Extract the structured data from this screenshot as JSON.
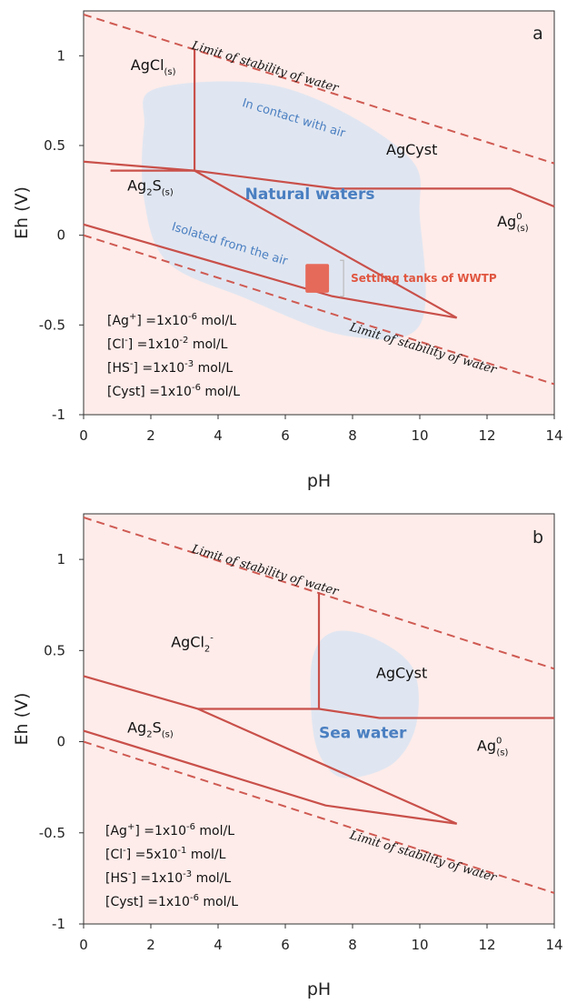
{
  "chart_data": [
    {
      "panel": "a",
      "type": "line",
      "xlabel": "pH",
      "ylabel": "Eh (V)",
      "xlim": [
        0,
        14
      ],
      "ylim": [
        -1,
        1.25
      ],
      "xticks": [
        "0",
        "2",
        "4",
        "6",
        "8",
        "10",
        "12",
        "14"
      ],
      "yticks": [
        "1",
        "0.5",
        "0",
        "-0.5",
        "-1"
      ],
      "species_labels": [
        {
          "main": "AgCl",
          "sub": "(s)",
          "x": 1.4,
          "y": 0.92
        },
        {
          "main": "AgCyst",
          "x": 9.0,
          "y": 0.45
        },
        {
          "main": "Ag",
          "sub": "(s)",
          "sup": "0",
          "x": 12.3,
          "y": 0.05
        },
        {
          "main": "Ag",
          "sub": "(s)",
          "sub2": "2",
          "tail": "S",
          "x": 1.3,
          "y": 0.25
        }
      ],
      "boundaries": [
        {
          "x": [
            3.3,
            3.3
          ],
          "y": [
            1.04,
            0.36
          ]
        },
        {
          "x": [
            0.8,
            3.3,
            7.5,
            12.7,
            14
          ],
          "y": [
            0.36,
            0.36,
            0.26,
            0.26,
            0.16
          ]
        },
        {
          "x": [
            0,
            3.3,
            11.1
          ],
          "y": [
            0.41,
            0.36,
            -0.46
          ]
        },
        {
          "x": [
            0,
            7.4,
            11.1
          ],
          "y": [
            0.06,
            -0.34,
            -0.46
          ]
        }
      ],
      "water_limits": [
        {
          "label": "Limit of stability of water",
          "x": [
            0,
            14
          ],
          "y": [
            1.23,
            0.4
          ]
        },
        {
          "label": "Limit of stability of water",
          "x": [
            0,
            14
          ],
          "y": [
            -0.0,
            -0.83
          ]
        }
      ],
      "region": {
        "label": "Natural waters",
        "sublabels": [
          "In contact with air",
          "Isolated from the air"
        ],
        "pts": [
          [
            2.2,
            0.82
          ],
          [
            6.0,
            0.82
          ],
          [
            9.6,
            0.45
          ],
          [
            10.0,
            0.1
          ],
          [
            10.0,
            -0.5
          ],
          [
            7.8,
            -0.56
          ],
          [
            4.8,
            -0.35
          ],
          [
            2.5,
            -0.15
          ],
          [
            1.8,
            0.2
          ],
          [
            1.8,
            0.6
          ]
        ]
      },
      "wwtp": {
        "label": "Settling tanks of WWTP",
        "x": [
          6.6,
          7.3
        ],
        "y": [
          -0.32,
          -0.16
        ]
      },
      "conditions": [
        {
          "name": "[Ag",
          "sup": "+",
          "rest": "] =1x10",
          "exp": "-6",
          "unit": " mol/L"
        },
        {
          "name": "[Cl",
          "sup": "-",
          "rest": "]   =1x10",
          "exp": "-2",
          "unit": " mol/L"
        },
        {
          "name": "[HS",
          "sup": "-",
          "rest": "] =1x10",
          "exp": "-3",
          "unit": " mol/L"
        },
        {
          "name": "[Cyst] =1x10",
          "sup": "",
          "rest": "",
          "exp": "-6",
          "unit": " mol/L"
        }
      ]
    },
    {
      "panel": "b",
      "type": "line",
      "xlabel": "pH",
      "ylabel": "Eh (V)",
      "xlim": [
        0,
        14
      ],
      "ylim": [
        -1,
        1.25
      ],
      "xticks": [
        "0",
        "2",
        "4",
        "6",
        "8",
        "10",
        "12",
        "14"
      ],
      "yticks": [
        "1",
        "0.5",
        "0",
        "-0.5",
        "-1"
      ],
      "species_labels": [
        {
          "main": "AgCl",
          "sub": "2",
          "sup": "-",
          "x": 2.6,
          "y": 0.52
        },
        {
          "main": "AgCyst",
          "x": 8.7,
          "y": 0.35
        },
        {
          "main": "Ag",
          "sub": "(s)",
          "sup": "0",
          "x": 11.7,
          "y": -0.05
        },
        {
          "main": "Ag",
          "sub": "(s)",
          "sub2": "2",
          "tail": "S",
          "x": 1.3,
          "y": 0.05
        }
      ],
      "boundaries": [
        {
          "x": [
            7.0,
            7.0
          ],
          "y": [
            0.82,
            0.18
          ]
        },
        {
          "x": [
            3.4,
            7.0,
            8.8,
            14
          ],
          "y": [
            0.18,
            0.18,
            0.13,
            0.13
          ]
        },
        {
          "x": [
            0,
            3.4,
            11.1
          ],
          "y": [
            0.36,
            0.18,
            -0.45
          ]
        },
        {
          "x": [
            0,
            7.2,
            11.1
          ],
          "y": [
            0.06,
            -0.35,
            -0.45
          ]
        }
      ],
      "water_limits": [
        {
          "label": "Limit of stability of water",
          "x": [
            0,
            14
          ],
          "y": [
            1.23,
            0.4
          ]
        },
        {
          "label": "Limit of stability of water",
          "x": [
            0,
            14
          ],
          "y": [
            -0.0,
            -0.83
          ]
        }
      ],
      "region": {
        "label": "Sea water",
        "pts": [
          [
            7.4,
            0.6
          ],
          [
            8.6,
            0.57
          ],
          [
            9.8,
            0.4
          ],
          [
            9.9,
            0.1
          ],
          [
            9.2,
            -0.12
          ],
          [
            7.8,
            -0.2
          ],
          [
            7.1,
            -0.1
          ],
          [
            6.8,
            0.1
          ],
          [
            6.8,
            0.45
          ]
        ]
      },
      "conditions": [
        {
          "name": "[Ag",
          "sup": "+",
          "rest": "] =1x10",
          "exp": "-6",
          "unit": " mol/L"
        },
        {
          "name": "[Cl",
          "sup": "-",
          "rest": "]   =5x10",
          "exp": "-1",
          "unit": " mol/L"
        },
        {
          "name": "[HS",
          "sup": "-",
          "rest": "] =1x10",
          "exp": "-3",
          "unit": " mol/L"
        },
        {
          "name": "[Cyst] =1x10",
          "sup": "",
          "rest": "",
          "exp": "-6",
          "unit": " mol/L"
        }
      ]
    }
  ],
  "colors": {
    "boundary": "#c9504a",
    "water_limit": "#cf5a52",
    "region": "#dde6f2",
    "region_text": "#4a7fc1",
    "wwtp": "#e66a5a",
    "frame": "#fdecea"
  }
}
